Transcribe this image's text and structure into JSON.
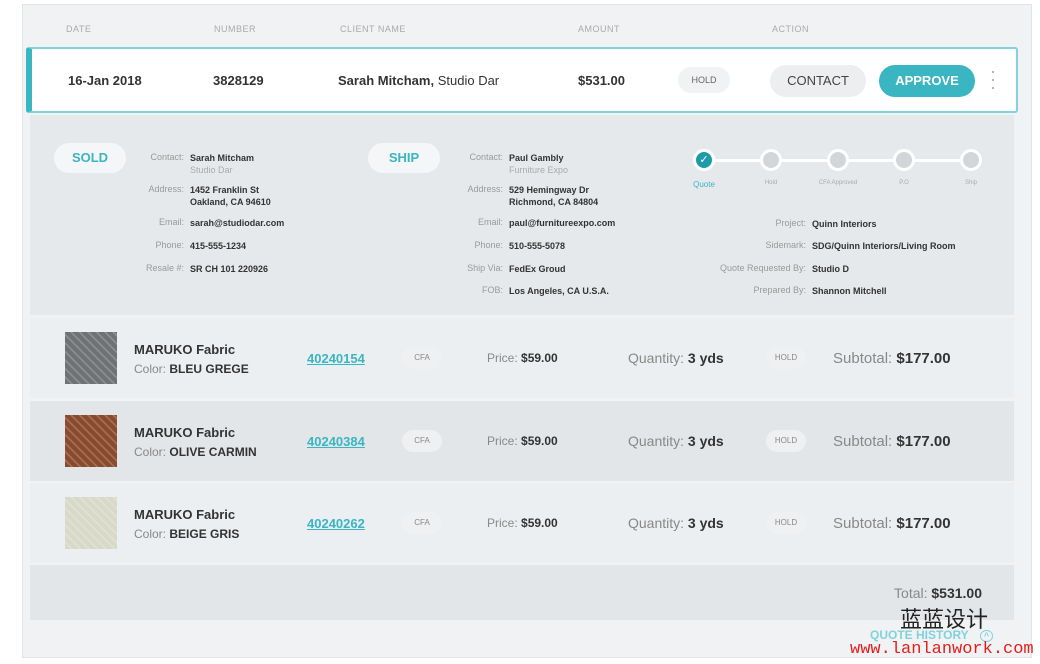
{
  "headers": [
    "DATE",
    "NUMBER",
    "CLIENT NAME",
    "AMOUNT",
    "ACTION"
  ],
  "order": {
    "date": "16-Jan 2018",
    "number": "3828129",
    "client": "Sarah Mitcham,",
    "client_company": "Studio Dar",
    "amount": "$531.00",
    "status": "HOLD",
    "contact_label": "CONTACT",
    "approve_label": "APPROVE"
  },
  "sold": {
    "tag": "SOLD",
    "contact_label": "Contact:",
    "contact": "Sarah Mitcham",
    "company": "Studio Dar",
    "address_label": "Address:",
    "address1": "1452 Franklin St",
    "address2": "Oakland, CA 94610",
    "email_label": "Email:",
    "email": "sarah@studiodar.com",
    "phone_label": "Phone:",
    "phone": "415-555-1234",
    "resale_label": "Resale #:",
    "resale": "SR CH 101 220926"
  },
  "ship": {
    "tag": "SHIP",
    "contact_label": "Contact:",
    "contact": "Paul Gambly",
    "company": "Furniture Expo",
    "address_label": "Address:",
    "address1": "529 Hemingway Dr",
    "address2": "Richmond, CA 84804",
    "email_label": "Email:",
    "email": "paul@furnitureexpo.com",
    "phone_label": "Phone:",
    "phone": "510-555-5078",
    "via_label": "Ship Via:",
    "via": "FedEx Groud",
    "fob_label": "FOB:",
    "fob": "Los Angeles, CA U.S.A."
  },
  "steps": [
    {
      "label": "Quote",
      "done": true
    },
    {
      "label": "Hold",
      "done": false
    },
    {
      "label": "CFA Approved",
      "done": false
    },
    {
      "label": "P.O",
      "done": false
    },
    {
      "label": "Ship",
      "done": false
    }
  ],
  "info": {
    "project_label": "Project:",
    "project": "Quinn Interiors",
    "sidemark_label": "Sidemark:",
    "sidemark": "SDG/Quinn Interiors/Living Room",
    "requested_label": "Quote Requested By:",
    "requested": "Studio D",
    "prepared_label": "Prepared By:",
    "prepared": "Shannon Mitchell"
  },
  "items": [
    {
      "name": "MARUKO Fabric",
      "color_label": "Color:",
      "color": "BLEU GREGE",
      "sku": "40240154",
      "cfa": "CFA",
      "price_label": "Price:",
      "price": "$59.00",
      "qty_label": "Quantity:",
      "qty": "3 yds",
      "status": "HOLD",
      "subtotal_label": "Subtotal:",
      "subtotal": "$177.00",
      "swatch": "#6e7275"
    },
    {
      "name": "MARUKO Fabric",
      "color_label": "Color:",
      "color": "OLIVE CARMIN",
      "sku": "40240384",
      "cfa": "CFA",
      "price_label": "Price:",
      "price": "$59.00",
      "qty_label": "Quantity:",
      "qty": "3 yds",
      "status": "HOLD",
      "subtotal_label": "Subtotal:",
      "subtotal": "$177.00",
      "swatch": "#8a4a2c"
    },
    {
      "name": "MARUKO Fabric",
      "color_label": "Color:",
      "color": "BEIGE GRIS",
      "sku": "40240262",
      "cfa": "CFA",
      "price_label": "Price:",
      "price": "$59.00",
      "qty_label": "Quantity:",
      "qty": "3 yds",
      "status": "HOLD",
      "subtotal_label": "Subtotal:",
      "subtotal": "$177.00",
      "swatch": "#d8d9c8"
    }
  ],
  "total_label": "Total:",
  "total": "$531.00",
  "quote_history": "QUOTE HISTORY",
  "watermark": {
    "brand": "蓝蓝设计",
    "url": "www.lanlanwork.com"
  },
  "colors": {
    "accent": "#3ab5c2"
  }
}
